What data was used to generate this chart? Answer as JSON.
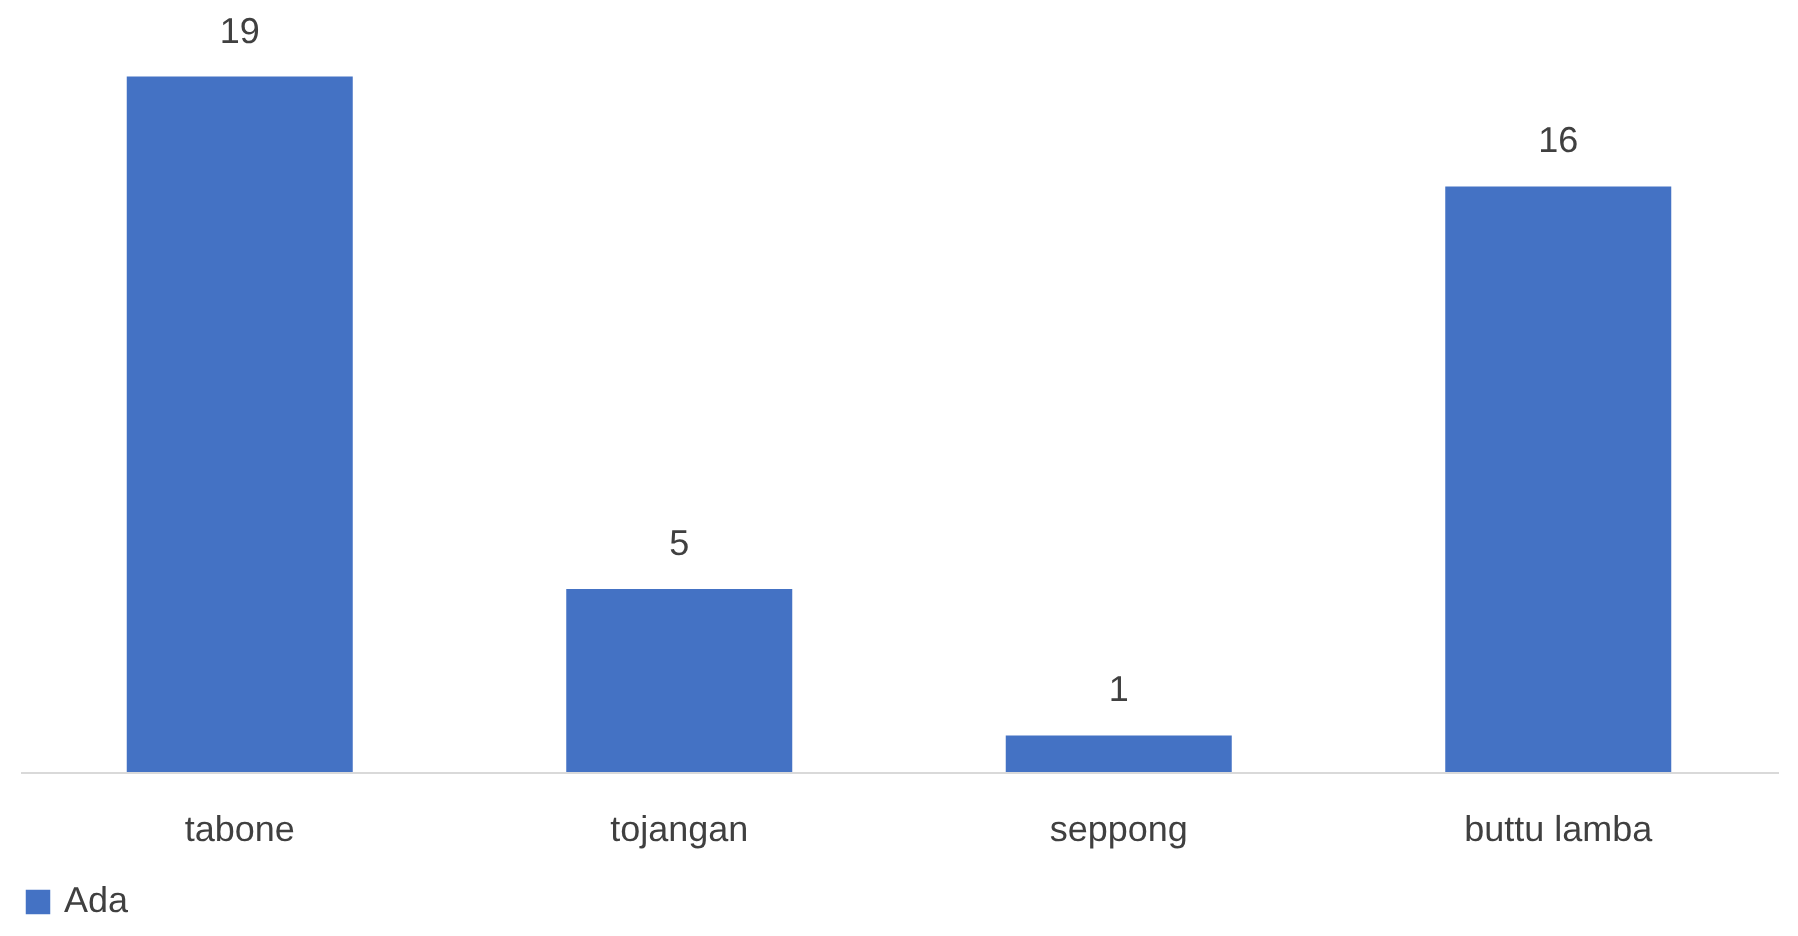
{
  "chart_data": {
    "type": "bar",
    "categories": [
      "tabone",
      "tojangan",
      "seppong",
      "buttu lamba"
    ],
    "series": [
      {
        "name": "Ada",
        "color": "#4472c4",
        "values": [
          19,
          5,
          1,
          16
        ]
      }
    ],
    "data_labels": true,
    "legend": "bottom",
    "grid": false
  }
}
